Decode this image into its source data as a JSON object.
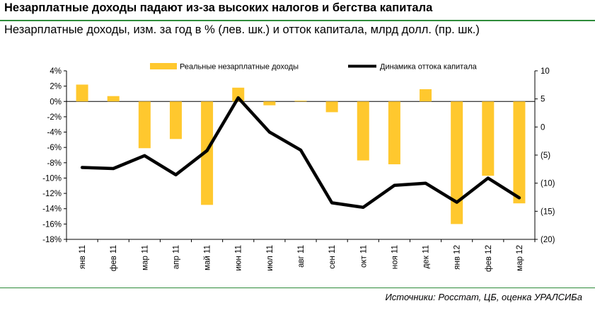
{
  "header": {
    "title": "Незарплатные доходы падают из-за высоких налогов и бегства капитала",
    "subtitle": "Незарплатные доходы, изм. за год в % (лев. шк.) и отток капитала, млрд долл. (пр. шк.)"
  },
  "footer": {
    "source": "Источники: Росстат, ЦБ, оценка УРАЛСИБа"
  },
  "colors": {
    "bar": "#ffc82e",
    "line": "#000000",
    "rule": "#2e8b3a"
  },
  "chart_data": {
    "type": "bar",
    "categories": [
      "янв 11",
      "фев 11",
      "мар 11",
      "апр 11",
      "май 11",
      "июн 11",
      "июл 11",
      "авг 11",
      "сен 11",
      "окт 11",
      "ноя 11",
      "дек 11",
      "янв 12",
      "фев 12",
      "мар 12"
    ],
    "series": [
      {
        "name": "Реальные незарплатные доходы",
        "type": "bar",
        "axis": "left",
        "values": [
          2.2,
          0.7,
          -6.1,
          -4.9,
          -13.5,
          1.8,
          -0.5,
          0.1,
          -1.4,
          -7.7,
          -8.2,
          1.6,
          -16.0,
          -9.7,
          -13.3
        ]
      },
      {
        "name": "Динамика оттока капитала",
        "type": "line",
        "axis": "right",
        "values": [
          -7.2,
          -7.4,
          -5.1,
          -8.5,
          -4.2,
          5.2,
          -0.9,
          -4.1,
          -13.5,
          -14.3,
          -10.4,
          -10.0,
          -13.4,
          -9.1,
          -12.6
        ]
      }
    ],
    "left_axis": {
      "ylim": [
        -18,
        4
      ],
      "ticks": [
        "4%",
        "2%",
        "0%",
        "-2%",
        "-4%",
        "-6%",
        "-8%",
        "-10%",
        "-12%",
        "-14%",
        "-16%",
        "-18%"
      ]
    },
    "right_axis": {
      "ylim": [
        -20,
        10
      ],
      "ticks": [
        "10",
        "5",
        "0",
        "(5)",
        "(10)",
        "(15)",
        "(20)"
      ]
    },
    "legend_position": "top",
    "grid": false
  }
}
